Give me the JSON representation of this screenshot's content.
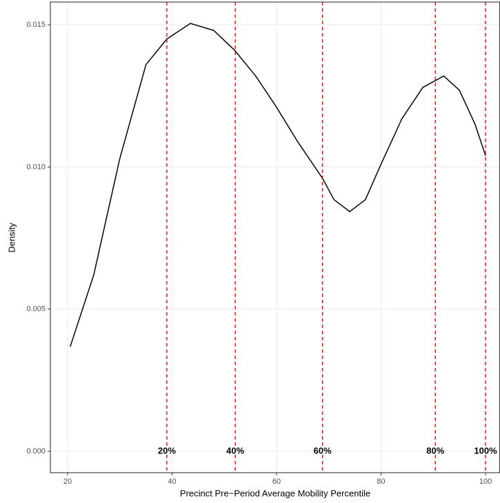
{
  "chart_data": {
    "type": "line",
    "xlabel": "Precinct Pre−Period Average Mobility Percentile",
    "ylabel": "Density",
    "x": [
      20.5,
      25,
      30,
      35,
      39,
      43.5,
      48,
      52,
      56,
      60,
      64,
      68.8,
      71,
      74,
      77,
      80,
      84,
      88,
      92,
      95,
      98,
      100
    ],
    "series": [
      {
        "color": "#000000",
        "values": [
          0.00368,
          0.0062,
          0.0103,
          0.0136,
          0.0145,
          0.01505,
          0.0148,
          0.0141,
          0.0132,
          0.0121,
          0.0109,
          0.0096,
          0.00885,
          0.00843,
          0.00885,
          0.0101,
          0.0117,
          0.0128,
          0.0132,
          0.0127,
          0.0115,
          0.0104
        ]
      }
    ],
    "xlim": [
      16.7,
      102.7
    ],
    "ylim": [
      -0.00075,
      0.0158
    ],
    "xticks": [
      20,
      40,
      60,
      80,
      100
    ],
    "yticks": [
      {
        "value": 0,
        "label": "0.000"
      },
      {
        "value": 0.005,
        "label": "0.005"
      },
      {
        "value": 0.01,
        "label": "0.010"
      },
      {
        "value": 0.015,
        "label": "0.015"
      }
    ],
    "grid": true,
    "vlines": {
      "color": "#ff0000",
      "lines": [
        {
          "x": 39.0,
          "label": "20%"
        },
        {
          "x": 52.1,
          "label": "40%"
        },
        {
          "x": 68.8,
          "label": "60%"
        },
        {
          "x": 90.4,
          "label": "80%"
        },
        {
          "x": 100,
          "label": "100%"
        }
      ]
    }
  }
}
